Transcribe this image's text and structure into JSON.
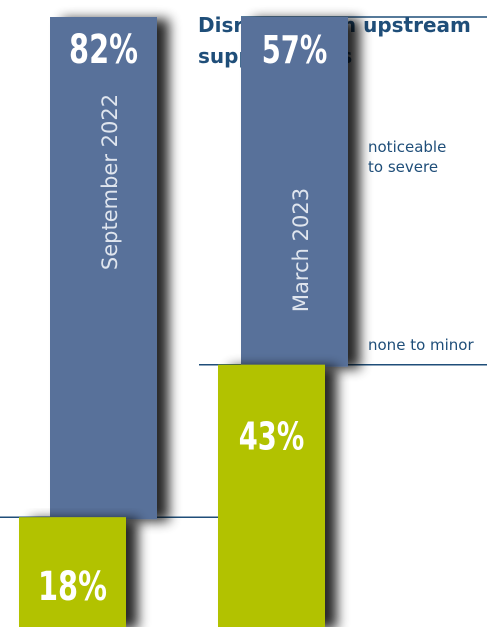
{
  "title_line1": "Disruptions in upstream",
  "title_line2": "supply chains",
  "colors": {
    "severe": "#58719a",
    "minor": "#b2c200",
    "label_on_bar": "#ffffff",
    "period_label": "#dfe5ee",
    "line": "#1f4e79",
    "text": "#1f4e79"
  },
  "chart_data": {
    "type": "bar",
    "stacked": true,
    "categories": [
      "September 2022",
      "March 2023"
    ],
    "ylim": [
      0,
      100
    ],
    "series": [
      {
        "name": "none to minor",
        "values": [
          18,
          43
        ],
        "labels": [
          "18%",
          "43%"
        ]
      },
      {
        "name": "noticeable to severe",
        "values": [
          82,
          57
        ],
        "labels": [
          "82%",
          "57%"
        ]
      }
    ],
    "legend": {
      "line1": "noticeable",
      "line2": "to severe",
      "minor": "none to minor"
    }
  }
}
